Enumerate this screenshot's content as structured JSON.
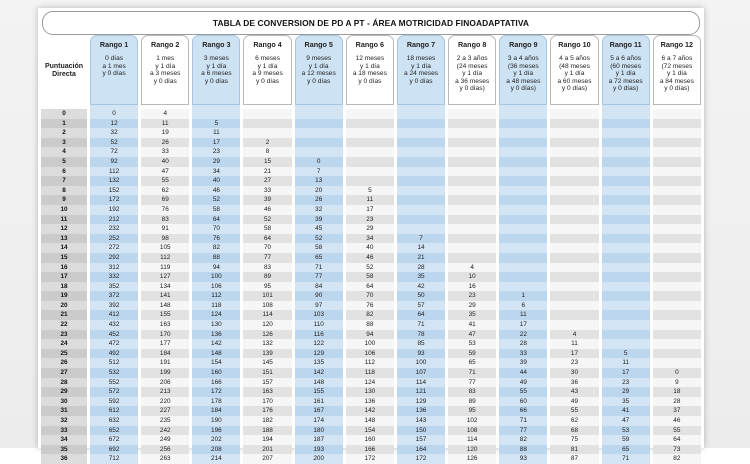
{
  "title": "TABLA DE CONVERSION DE PD A PT - ÁREA MOTRICIDAD FINOADAPTATIVA",
  "pd_header": [
    "Puntuación",
    "Directa"
  ],
  "ranges": [
    {
      "name": "Rango 1",
      "lines": [
        "0 días",
        "a 1 mes",
        "y 0 días"
      ],
      "highlight": true
    },
    {
      "name": "Rango 2",
      "lines": [
        "1 mes",
        "y 1 día",
        "a 3 meses",
        "y 0 días"
      ],
      "highlight": false
    },
    {
      "name": "Rango 3",
      "lines": [
        "3 meses",
        "y 1 día",
        "a 6 meses",
        "y 0 días"
      ],
      "highlight": true
    },
    {
      "name": "Rango 4",
      "lines": [
        "6 meses",
        "y 1 día",
        "a 9 meses",
        "y 0 días"
      ],
      "highlight": false
    },
    {
      "name": "Rango 5",
      "lines": [
        "9 meses",
        "y 1 día",
        "a 12 meses",
        "y 0 días"
      ],
      "highlight": true
    },
    {
      "name": "Rango 6",
      "lines": [
        "12 meses",
        "y 1 día",
        "a 18 meses",
        "y 0 días"
      ],
      "highlight": false
    },
    {
      "name": "Rango 7",
      "lines": [
        "18 meses",
        "y 1 día",
        "a 24 meses",
        "y 0 días"
      ],
      "highlight": true
    },
    {
      "name": "Rango 8",
      "lines": [
        "2 a 3 años",
        "(24 meses",
        "y 1 día",
        "a 36 meses",
        "y 0 días)"
      ],
      "highlight": false
    },
    {
      "name": "Rango 9",
      "lines": [
        "3 a 4 años",
        "(36 meses",
        "y 1 día",
        "a 48 meses",
        "y 0 días)"
      ],
      "highlight": true
    },
    {
      "name": "Rango 10",
      "lines": [
        "4 a 5 años",
        "(48 meses",
        "y 1 día",
        "a 60 meses",
        "y 0 días)"
      ],
      "highlight": false
    },
    {
      "name": "Rango 11",
      "lines": [
        "5 a 6 años",
        "(60 meses",
        "y 1 día",
        "a 72 meses",
        "y 0 días)"
      ],
      "highlight": true
    },
    {
      "name": "Rango 12",
      "lines": [
        "6 a 7 años",
        "(72 meses",
        "y 1 día",
        "a 84 meses",
        "y 0 días)"
      ],
      "highlight": false
    }
  ],
  "rows": [
    {
      "pd": "0",
      "v": [
        "0",
        "4",
        "",
        "",
        "",
        "",
        "",
        "",
        "",
        "",
        "",
        ""
      ]
    },
    {
      "pd": "1",
      "v": [
        "12",
        "11",
        "5",
        "",
        "",
        "",
        "",
        "",
        "",
        "",
        "",
        ""
      ]
    },
    {
      "pd": "2",
      "v": [
        "32",
        "19",
        "11",
        "",
        "",
        "",
        "",
        "",
        "",
        "",
        "",
        ""
      ]
    },
    {
      "pd": "3",
      "v": [
        "52",
        "26",
        "17",
        "2",
        "",
        "",
        "",
        "",
        "",
        "",
        "",
        ""
      ]
    },
    {
      "pd": "4",
      "v": [
        "72",
        "33",
        "23",
        "8",
        "",
        "",
        "",
        "",
        "",
        "",
        "",
        ""
      ]
    },
    {
      "pd": "5",
      "v": [
        "92",
        "40",
        "29",
        "15",
        "0",
        "",
        "",
        "",
        "",
        "",
        "",
        ""
      ]
    },
    {
      "pd": "6",
      "v": [
        "112",
        "47",
        "34",
        "21",
        "7",
        "",
        "",
        "",
        "",
        "",
        "",
        ""
      ]
    },
    {
      "pd": "7",
      "v": [
        "132",
        "55",
        "40",
        "27",
        "13",
        "",
        "",
        "",
        "",
        "",
        "",
        ""
      ]
    },
    {
      "pd": "8",
      "v": [
        "152",
        "62",
        "46",
        "33",
        "20",
        "5",
        "",
        "",
        "",
        "",
        "",
        ""
      ]
    },
    {
      "pd": "9",
      "v": [
        "172",
        "69",
        "52",
        "39",
        "26",
        "11",
        "",
        "",
        "",
        "",
        "",
        ""
      ]
    },
    {
      "pd": "10",
      "v": [
        "192",
        "76",
        "58",
        "46",
        "32",
        "17",
        "",
        "",
        "",
        "",
        "",
        ""
      ]
    },
    {
      "pd": "11",
      "v": [
        "212",
        "83",
        "64",
        "52",
        "39",
        "23",
        "",
        "",
        "",
        "",
        "",
        ""
      ]
    },
    {
      "pd": "12",
      "v": [
        "232",
        "91",
        "70",
        "58",
        "45",
        "29",
        "",
        "",
        "",
        "",
        "",
        ""
      ]
    },
    {
      "pd": "13",
      "v": [
        "252",
        "98",
        "76",
        "64",
        "52",
        "34",
        "7",
        "",
        "",
        "",
        "",
        ""
      ]
    },
    {
      "pd": "14",
      "v": [
        "272",
        "105",
        "82",
        "70",
        "58",
        "40",
        "14",
        "",
        "",
        "",
        "",
        ""
      ]
    },
    {
      "pd": "15",
      "v": [
        "292",
        "112",
        "88",
        "77",
        "65",
        "46",
        "21",
        "",
        "",
        "",
        "",
        ""
      ]
    },
    {
      "pd": "16",
      "v": [
        "312",
        "119",
        "94",
        "83",
        "71",
        "52",
        "28",
        "4",
        "",
        "",
        "",
        ""
      ]
    },
    {
      "pd": "17",
      "v": [
        "332",
        "127",
        "100",
        "89",
        "77",
        "58",
        "35",
        "10",
        "",
        "",
        "",
        ""
      ]
    },
    {
      "pd": "18",
      "v": [
        "352",
        "134",
        "106",
        "95",
        "84",
        "64",
        "42",
        "16",
        "",
        "",
        "",
        ""
      ]
    },
    {
      "pd": "19",
      "v": [
        "372",
        "141",
        "112",
        "101",
        "90",
        "70",
        "50",
        "23",
        "1",
        "",
        "",
        ""
      ]
    },
    {
      "pd": "20",
      "v": [
        "392",
        "148",
        "118",
        "108",
        "97",
        "76",
        "57",
        "29",
        "6",
        "",
        "",
        ""
      ]
    },
    {
      "pd": "21",
      "v": [
        "412",
        "155",
        "124",
        "114",
        "103",
        "82",
        "64",
        "35",
        "11",
        "",
        "",
        ""
      ]
    },
    {
      "pd": "22",
      "v": [
        "432",
        "163",
        "130",
        "120",
        "110",
        "88",
        "71",
        "41",
        "17",
        "",
        "",
        ""
      ]
    },
    {
      "pd": "23",
      "v": [
        "452",
        "170",
        "136",
        "126",
        "116",
        "94",
        "78",
        "47",
        "22",
        "4",
        "",
        ""
      ]
    },
    {
      "pd": "24",
      "v": [
        "472",
        "177",
        "142",
        "132",
        "122",
        "100",
        "85",
        "53",
        "28",
        "11",
        "",
        ""
      ]
    },
    {
      "pd": "25",
      "v": [
        "492",
        "184",
        "148",
        "139",
        "129",
        "106",
        "93",
        "59",
        "33",
        "17",
        "5",
        ""
      ]
    },
    {
      "pd": "26",
      "v": [
        "512",
        "191",
        "154",
        "145",
        "135",
        "112",
        "100",
        "65",
        "39",
        "23",
        "11",
        ""
      ]
    },
    {
      "pd": "27",
      "v": [
        "532",
        "199",
        "160",
        "151",
        "142",
        "118",
        "107",
        "71",
        "44",
        "30",
        "17",
        "0"
      ]
    },
    {
      "pd": "28",
      "v": [
        "552",
        "206",
        "166",
        "157",
        "148",
        "124",
        "114",
        "77",
        "49",
        "36",
        "23",
        "9"
      ]
    },
    {
      "pd": "29",
      "v": [
        "572",
        "213",
        "172",
        "163",
        "155",
        "130",
        "121",
        "83",
        "55",
        "43",
        "29",
        "18"
      ]
    },
    {
      "pd": "30",
      "v": [
        "592",
        "220",
        "178",
        "170",
        "161",
        "136",
        "129",
        "89",
        "60",
        "49",
        "35",
        "28"
      ]
    },
    {
      "pd": "31",
      "v": [
        "612",
        "227",
        "184",
        "176",
        "167",
        "142",
        "136",
        "95",
        "66",
        "55",
        "41",
        "37"
      ]
    },
    {
      "pd": "32",
      "v": [
        "632",
        "235",
        "190",
        "182",
        "174",
        "148",
        "143",
        "102",
        "71",
        "62",
        "47",
        "46"
      ]
    },
    {
      "pd": "33",
      "v": [
        "652",
        "242",
        "196",
        "188",
        "180",
        "154",
        "150",
        "108",
        "77",
        "68",
        "53",
        "55"
      ]
    },
    {
      "pd": "34",
      "v": [
        "672",
        "249",
        "202",
        "194",
        "187",
        "160",
        "157",
        "114",
        "82",
        "75",
        "59",
        "64"
      ]
    },
    {
      "pd": "35",
      "v": [
        "692",
        "256",
        "208",
        "201",
        "193",
        "166",
        "164",
        "120",
        "88",
        "81",
        "65",
        "73"
      ]
    },
    {
      "pd": "36",
      "v": [
        "712",
        "263",
        "214",
        "207",
        "200",
        "172",
        "172",
        "126",
        "93",
        "87",
        "71",
        "82"
      ]
    }
  ],
  "colors": {
    "highlight_column": "#cde2f3",
    "row_light": "#f6f6f6",
    "row_dark": "#e2e2e2"
  }
}
